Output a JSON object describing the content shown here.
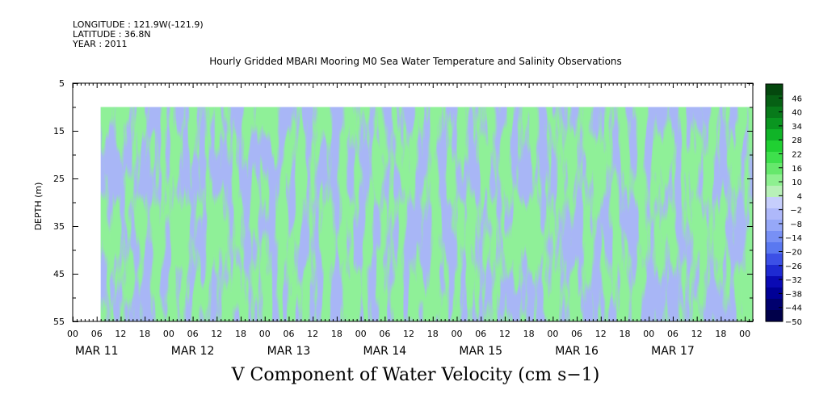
{
  "header": {
    "longitude": "LONGITUDE : 121.9W(-121.9)",
    "latitude": "LATITUDE : 36.8N",
    "year": "YEAR : 2011"
  },
  "chart_data": {
    "type": "heatmap",
    "title": "Hourly Gridded MBARI Mooring M0 Sea Water Temperature and Salinity Observations",
    "xlabel": "V Component of Water Velocity (cm s−1)",
    "ylabel": "DEPTH (m)",
    "y_ticks": [
      5,
      15,
      25,
      35,
      45,
      55
    ],
    "ylim": [
      5,
      55
    ],
    "y_data_range": [
      10,
      55
    ],
    "hour_ticks": [
      "00",
      "06",
      "12",
      "18",
      "00",
      "06",
      "12",
      "18",
      "00",
      "06",
      "12",
      "18",
      "00",
      "06",
      "12",
      "18",
      "00",
      "06",
      "12",
      "18",
      "00",
      "06",
      "12",
      "18",
      "00",
      "06",
      "12",
      "18",
      "00"
    ],
    "days": [
      "MAR 11",
      "MAR 12",
      "MAR 13",
      "MAR 14",
      "MAR 15",
      "MAR 16",
      "MAR 17"
    ],
    "xlim_hours": [
      0,
      170
    ],
    "data_start_hour": 7,
    "colorbar": {
      "labels": [
        "46",
        "40",
        "34",
        "28",
        "22",
        "16",
        "10",
        "4",
        "−2",
        "−8",
        "−14",
        "−20",
        "−26",
        "−32",
        "−38",
        "−44",
        "−50"
      ],
      "range": [
        -50,
        52
      ],
      "colors": [
        "#00004a",
        "#00006e",
        "#000096",
        "#0a0ab4",
        "#1e2ad2",
        "#3c50e6",
        "#5a78f0",
        "#7890f5",
        "#96a8f8",
        "#aeb8fa",
        "#c6cefc",
        "#b8f0b8",
        "#8ef090",
        "#66e86c",
        "#3ee04c",
        "#20d032",
        "#10b428",
        "#0a9620",
        "#087a1a",
        "#066014",
        "#04480e"
      ]
    },
    "grid": false,
    "legend": "right colorbar"
  }
}
